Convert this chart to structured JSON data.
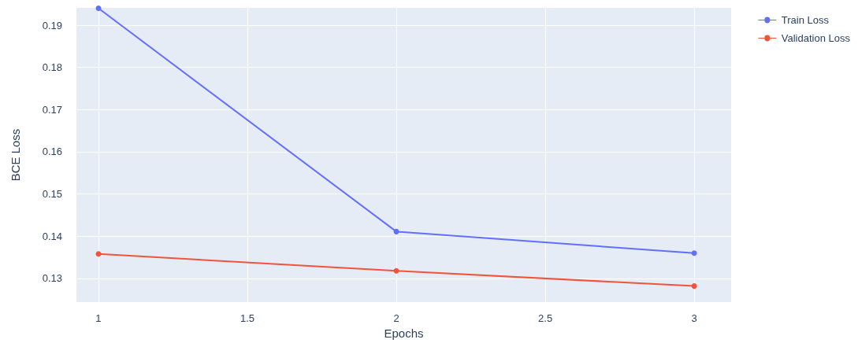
{
  "chart_data": {
    "type": "line",
    "xlabel": "Epochs",
    "ylabel": "BCE Loss",
    "x": [
      1,
      2,
      3
    ],
    "series": [
      {
        "name": "Train Loss",
        "color": "#636efa",
        "values": [
          0.194,
          0.1411,
          0.136
        ]
      },
      {
        "name": "Validation Loss",
        "color": "#ef553b",
        "values": [
          0.1358,
          0.1318,
          0.1282
        ]
      }
    ],
    "xlim": [
      0.926,
      3.124
    ],
    "xticks": [
      1,
      1.5,
      2,
      2.5,
      3
    ],
    "ylim": [
      0.1244,
      0.1941
    ],
    "yticks": [
      0.13,
      0.14,
      0.15,
      0.16,
      0.17,
      0.18,
      0.19
    ],
    "grid": true,
    "legend": "top right",
    "marker": "circle",
    "line_style": "solid"
  }
}
